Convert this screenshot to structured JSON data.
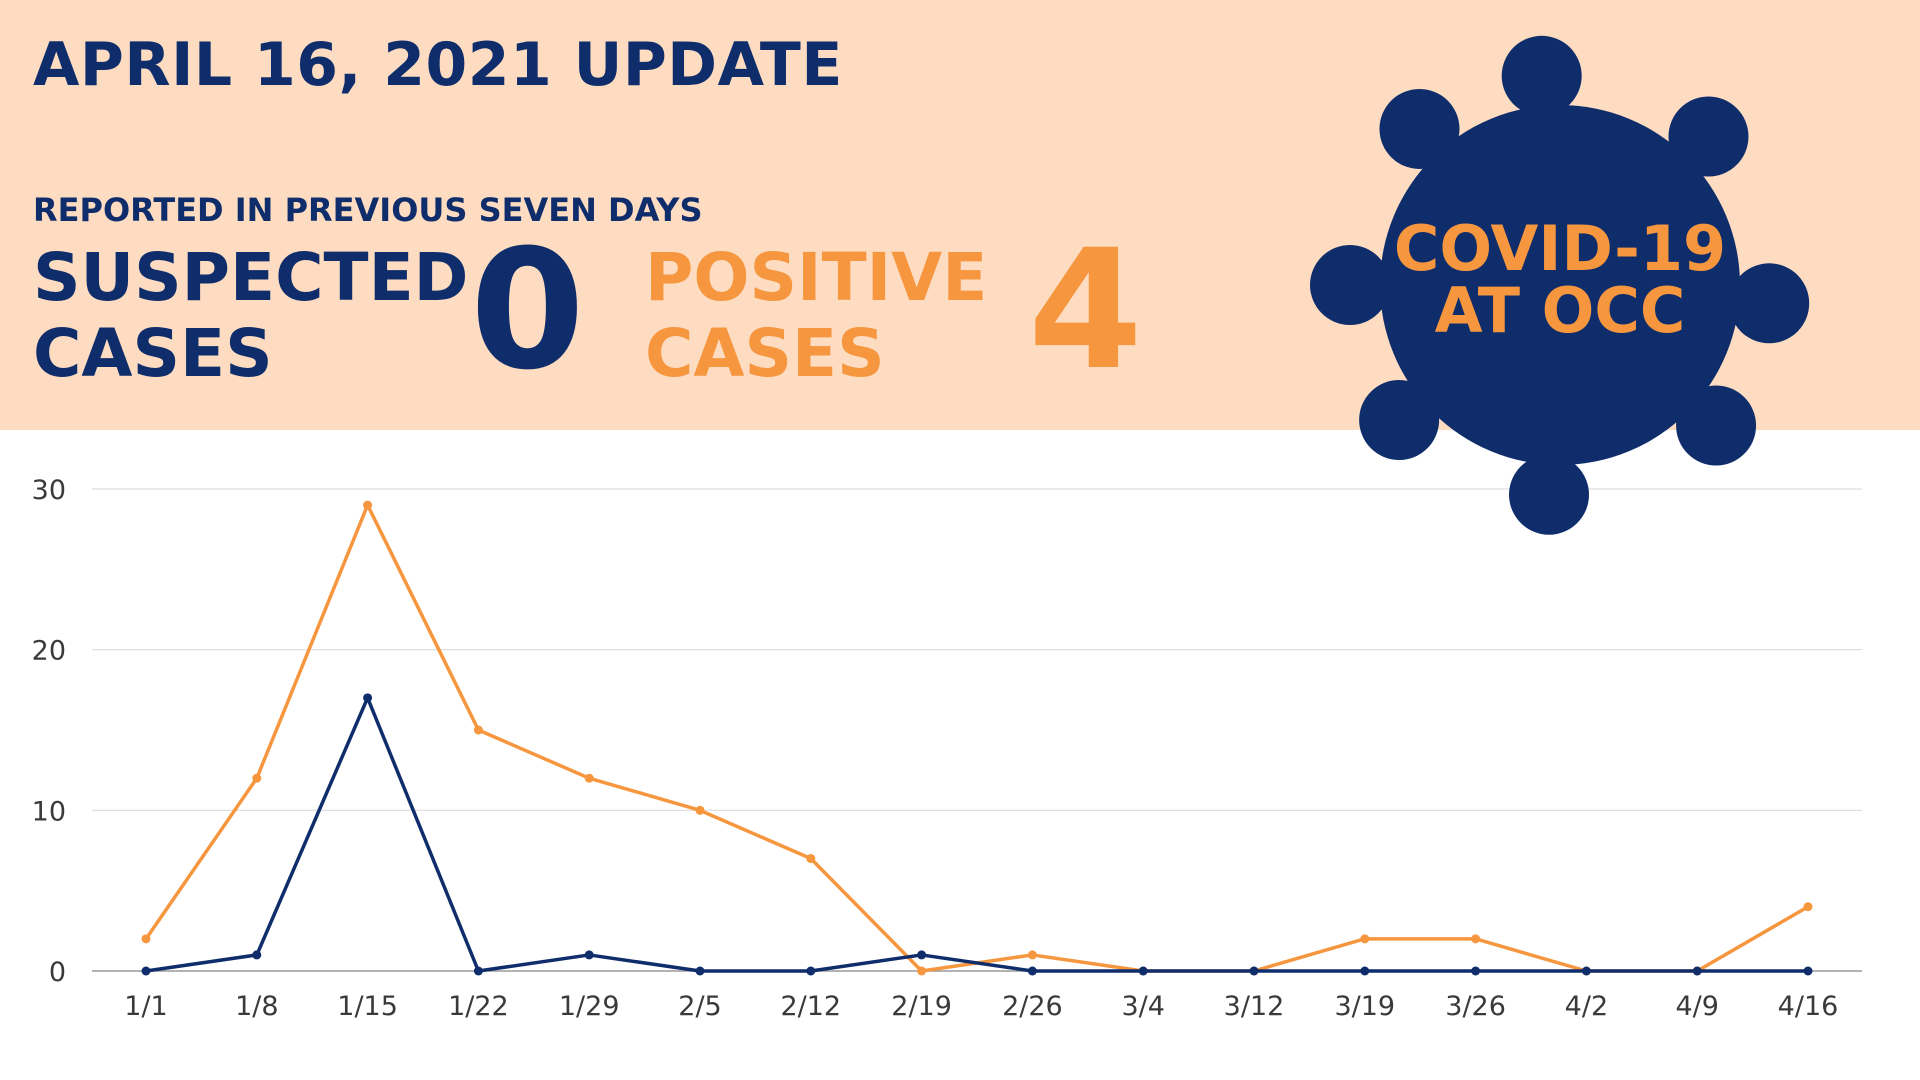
{
  "header": {
    "title": "APRIL 16, 2021 UPDATE",
    "period": "REPORTED IN PREVIOUS SEVEN DAYS",
    "suspected": {
      "label_line1": "SUSPECTED",
      "label_line2": "CASES",
      "value": "0"
    },
    "positive": {
      "label_line1": "POSITIVE",
      "label_line2": "CASES",
      "value": "4"
    },
    "badge": {
      "line1": "COVID-19",
      "line2": "AT OCC",
      "icon": "virus-icon"
    }
  },
  "colors": {
    "band_background": "#fddcc2",
    "navy": "#0f2d6b",
    "orange": "#f6963e",
    "grid": "#dddddd"
  },
  "chart_data": {
    "type": "line",
    "title": "",
    "xlabel": "",
    "ylabel": "",
    "ylim": [
      0,
      30
    ],
    "yticks": [
      0,
      10,
      20,
      30
    ],
    "grid": true,
    "legend": "none",
    "categories": [
      "1/1",
      "1/8",
      "1/15",
      "1/22",
      "1/29",
      "2/5",
      "2/12",
      "2/19",
      "2/26",
      "3/4",
      "3/12",
      "3/19",
      "3/26",
      "4/2",
      "4/9",
      "4/16"
    ],
    "series": [
      {
        "color": "#f6963e",
        "values": [
          2,
          12,
          29,
          15,
          12,
          10,
          7,
          0,
          1,
          0,
          0,
          2,
          2,
          0,
          0,
          4
        ]
      },
      {
        "color": "#0f2d6b",
        "values": [
          0,
          1,
          17,
          0,
          1,
          0,
          0,
          1,
          0,
          0,
          0,
          0,
          0,
          0,
          0,
          0
        ]
      }
    ]
  }
}
